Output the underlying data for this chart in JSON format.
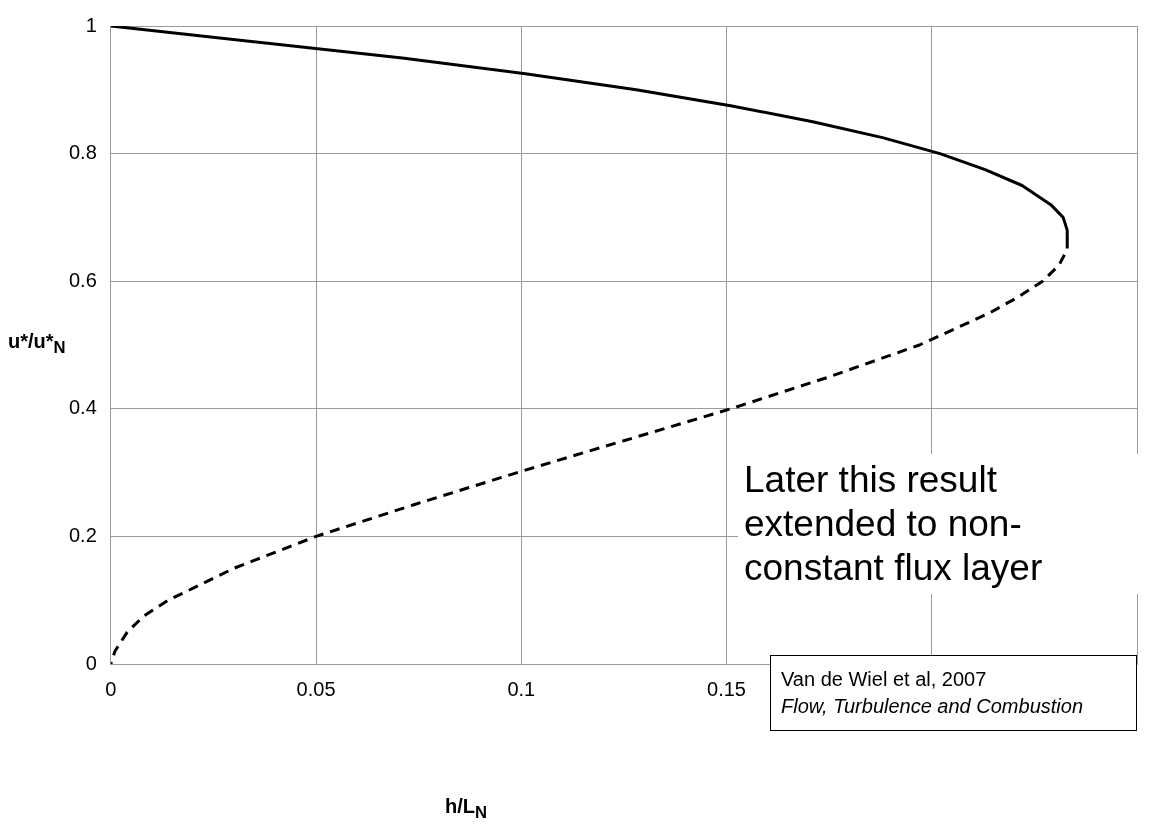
{
  "chart_data": {
    "type": "line",
    "xlabel": "h/L$_{N}$",
    "ylabel": "u*/u*$_{N}$",
    "xlim": [
      0,
      0.25
    ],
    "xticks": [
      0,
      0.05,
      0.1,
      0.15,
      {
        "value": 0.2,
        "label": null
      },
      {
        "value": 0.25,
        "label": null
      }
    ],
    "ylim": [
      0,
      1
    ],
    "yticks": [
      0,
      0.2,
      0.4,
      0.6,
      0.8,
      1
    ],
    "grid": true,
    "marker": "none",
    "series": [
      {
        "color": "#000000",
        "line_style": "solid",
        "x": [
          0,
          0.071,
          0.101,
          0.128,
          0.151,
          0.171,
          0.188,
          0.202,
          0.213,
          0.222,
          0.229,
          0.232,
          0.233,
          0.233
        ],
        "values": [
          1,
          0.95,
          0.925,
          0.9,
          0.875,
          0.85,
          0.825,
          0.8,
          0.775,
          0.75,
          0.72,
          0.7,
          0.68,
          0.667
        ]
      },
      {
        "color": "#000000",
        "line_style": "dashed",
        "x": [
          0.233,
          0.233,
          0.231,
          0.227,
          0.221,
          0.214,
          0.197,
          0.175,
          0.151,
          0.125,
          0.099,
          0.074,
          0.05,
          0.03,
          0.014,
          0.008,
          0.004,
          0.001,
          0
        ],
        "values": [
          0.667,
          0.65,
          0.625,
          0.6,
          0.575,
          0.55,
          0.5,
          0.45,
          0.4,
          0.35,
          0.3,
          0.25,
          0.2,
          0.15,
          0.1,
          0.075,
          0.05,
          0.02,
          0
        ]
      }
    ],
    "annotations": [
      "Later this result extended to non-constant flux layer",
      "Van de Wiel et al, 2007\nFlow, Turbulence and Combustion"
    ]
  }
}
